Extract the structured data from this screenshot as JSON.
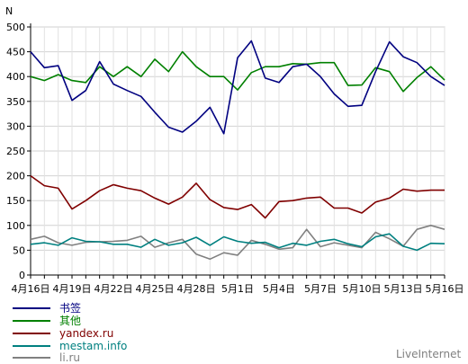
{
  "chart_data": {
    "type": "line",
    "ylabel": "N",
    "ylim": [
      0,
      500
    ],
    "yticks": [
      0,
      50,
      100,
      150,
      200,
      250,
      300,
      350,
      400,
      450,
      500
    ],
    "grid": true,
    "legend_position": "bottom-left",
    "categories": [
      "4月16日",
      "4月17日",
      "4月18日",
      "4月19日",
      "4月20日",
      "4月21日",
      "4月22日",
      "4月23日",
      "4月24日",
      "4月25日",
      "4月26日",
      "4月27日",
      "4月28日",
      "4月29日",
      "4月30日",
      "5月1日",
      "5月2日",
      "5月3日",
      "5月4日",
      "5月5日",
      "5月6日",
      "5月7日",
      "5月8日",
      "5月9日",
      "5月10日",
      "5月11日",
      "5月12日",
      "5月13日",
      "5月14日",
      "5月15日",
      "5月16日"
    ],
    "xtick_labels": [
      "4月16日",
      "4月19日",
      "4月22日",
      "4月25日",
      "4月28日",
      "5月1日",
      "5月4日",
      "5月7日",
      "5月10日",
      "5月13日",
      "5月16日"
    ],
    "series": [
      {
        "name": "书签",
        "color": "#000080",
        "values": [
          450,
          418,
          422,
          352,
          372,
          430,
          385,
          372,
          360,
          328,
          298,
          288,
          310,
          338,
          285,
          438,
          472,
          397,
          388,
          420,
          425,
          400,
          365,
          340,
          342,
          410,
          470,
          440,
          428,
          400,
          382
        ]
      },
      {
        "name": "其他",
        "color": "#008000",
        "values": [
          400,
          392,
          404,
          392,
          388,
          420,
          400,
          420,
          400,
          435,
          410,
          450,
          420,
          400,
          400,
          373,
          408,
          420,
          420,
          426,
          425,
          428,
          428,
          382,
          383,
          418,
          410,
          370,
          398,
          420,
          393
        ]
      },
      {
        "name": "yandex.ru",
        "color": "#800000",
        "values": [
          200,
          180,
          175,
          133,
          150,
          170,
          182,
          175,
          170,
          155,
          143,
          157,
          185,
          152,
          136,
          132,
          142,
          115,
          148,
          150,
          155,
          157,
          135,
          135,
          125,
          147,
          155,
          173,
          169,
          171,
          171
        ]
      },
      {
        "name": "mestam.info",
        "color": "#008080",
        "values": [
          62,
          65,
          60,
          75,
          68,
          67,
          62,
          62,
          56,
          72,
          60,
          65,
          76,
          60,
          77,
          68,
          64,
          66,
          55,
          64,
          60,
          68,
          72,
          63,
          57,
          77,
          83,
          58,
          50,
          64,
          63
        ]
      },
      {
        "name": "li.ru",
        "color": "#808080",
        "values": [
          72,
          78,
          65,
          60,
          66,
          67,
          68,
          70,
          78,
          56,
          65,
          72,
          42,
          32,
          45,
          40,
          70,
          62,
          52,
          55,
          92,
          57,
          65,
          60,
          55,
          86,
          73,
          58,
          92,
          100,
          92
        ]
      }
    ]
  },
  "brand": "LiveInternet"
}
